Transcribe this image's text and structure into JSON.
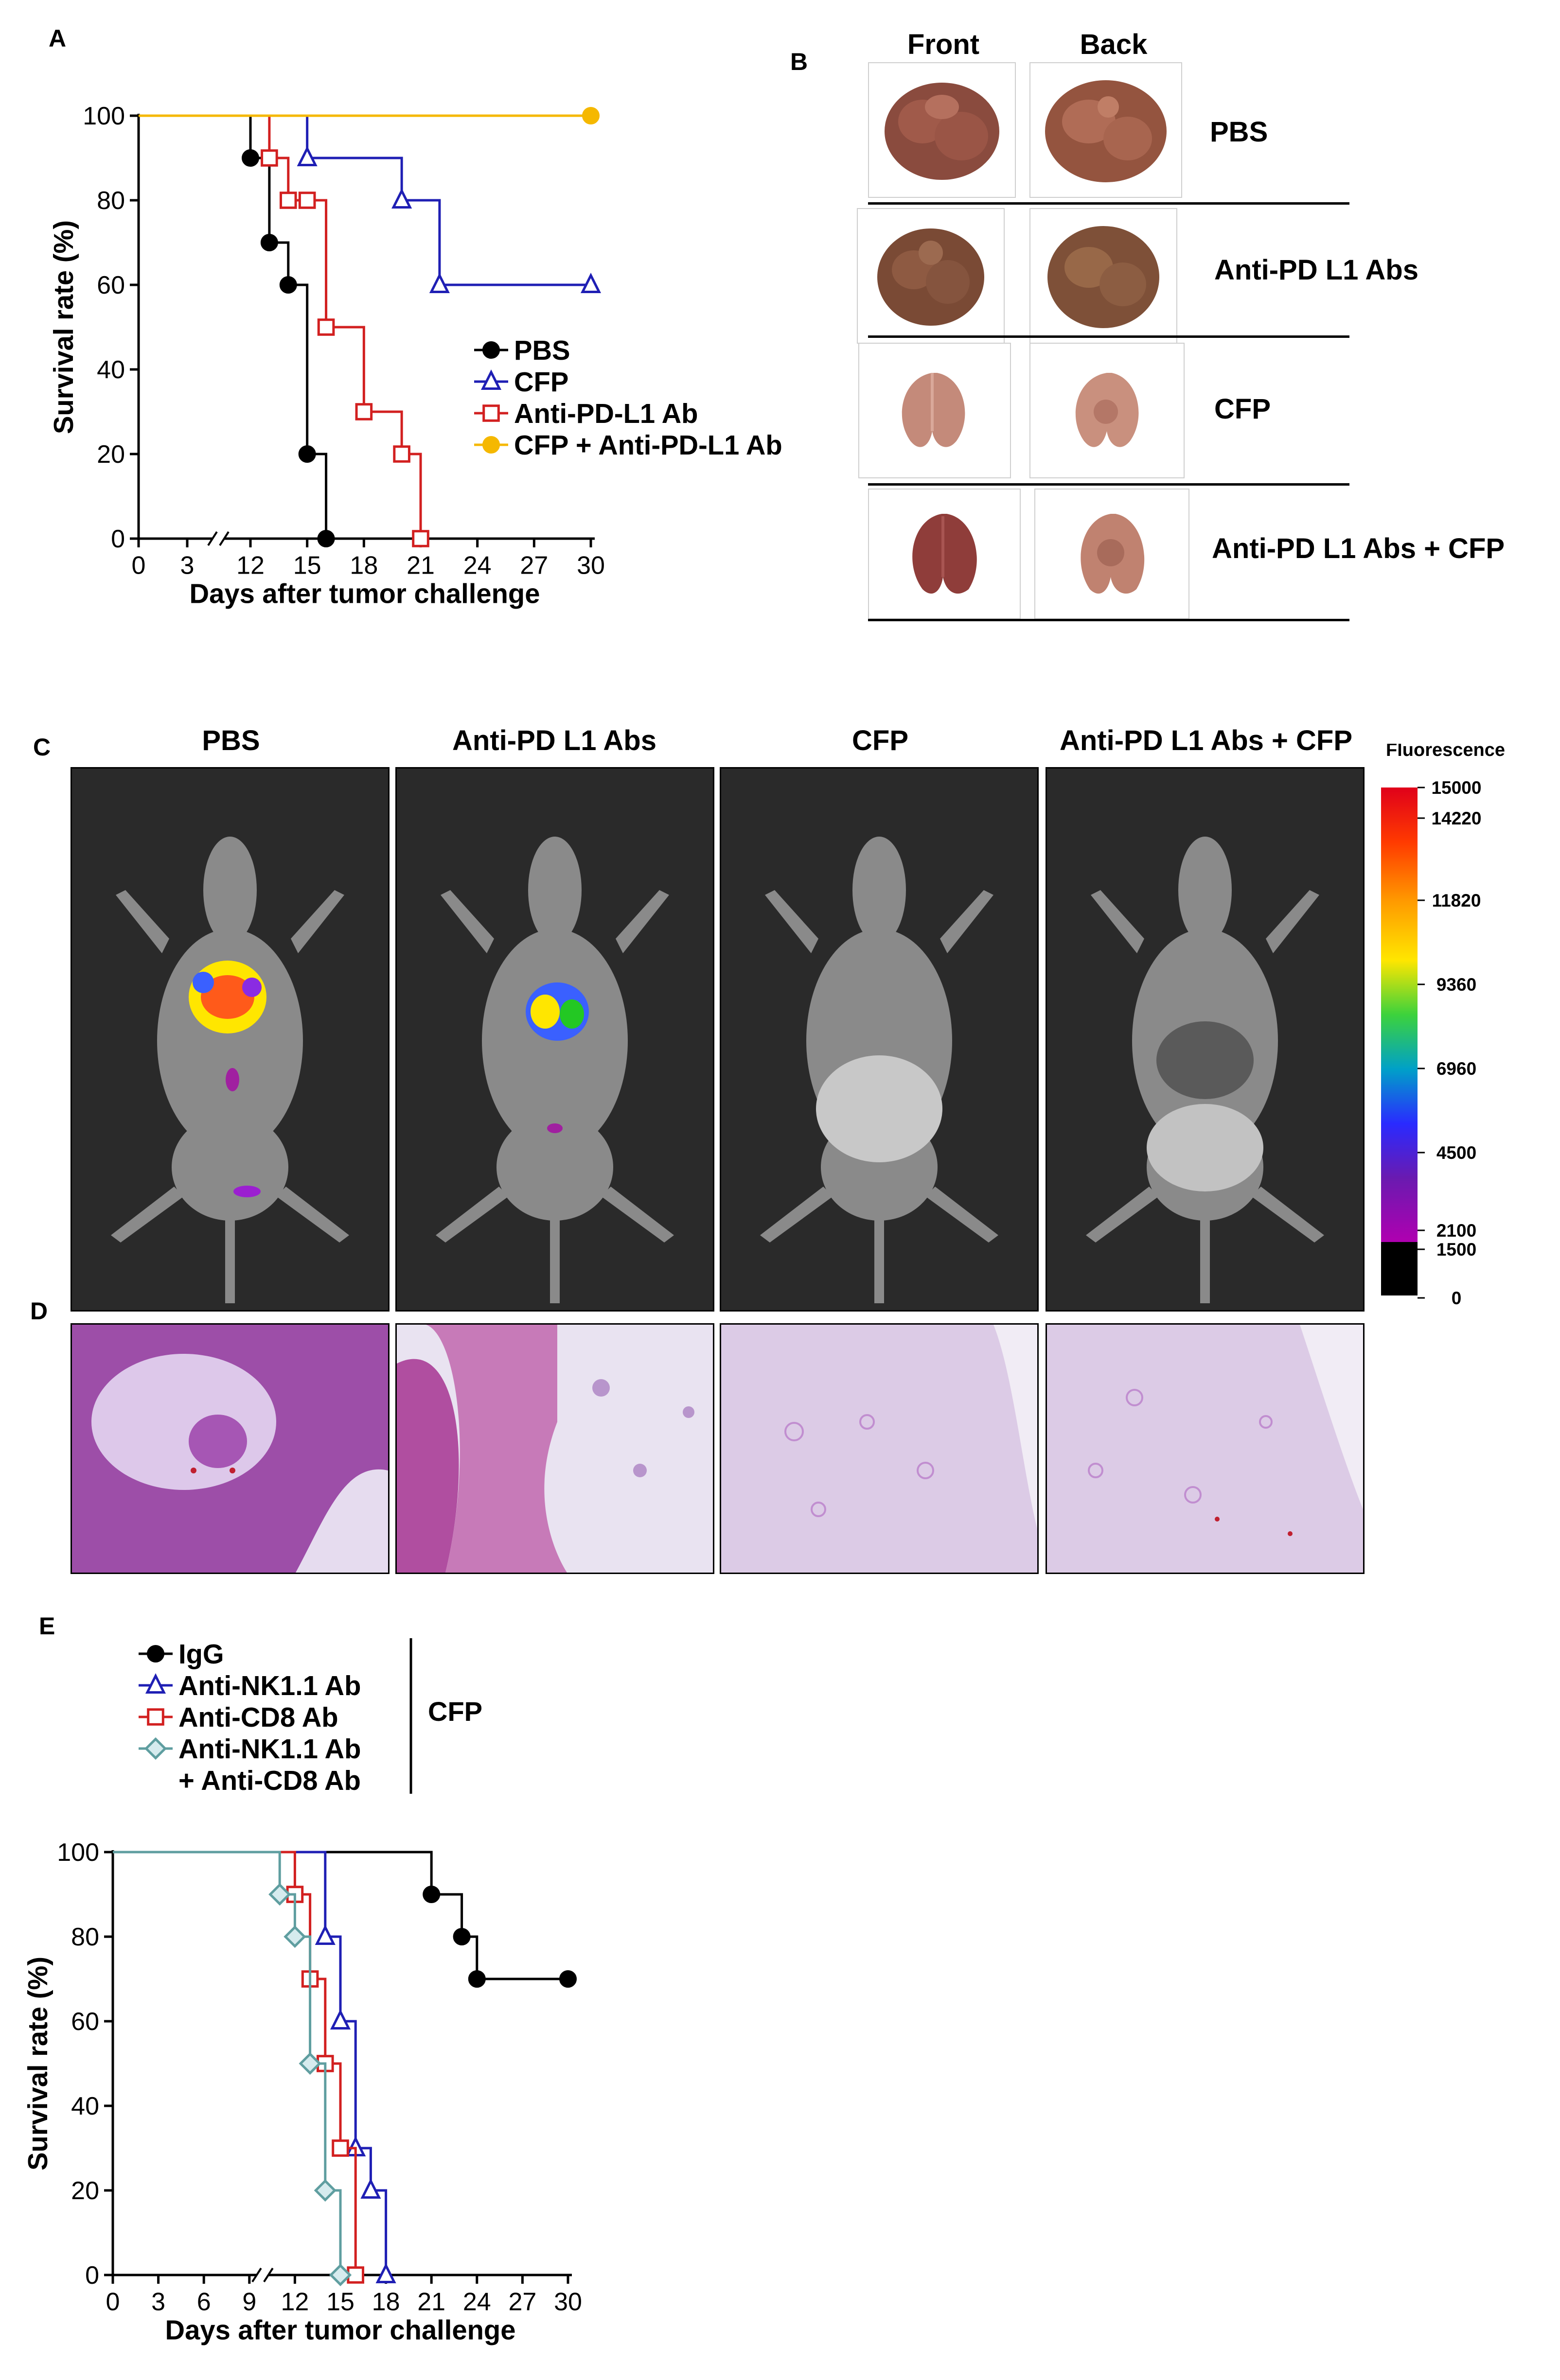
{
  "panels": {
    "a_label": "A",
    "b_label": "B",
    "c_label": "C",
    "d_label": "D",
    "e_label": "E"
  },
  "panel_b": {
    "col_front": "Front",
    "col_back": "Back",
    "rows": [
      "PBS",
      "Anti-PD L1 Abs",
      "CFP",
      "Anti-PD L1 Abs + CFP"
    ]
  },
  "panel_c": {
    "headers": [
      "PBS",
      "Anti-PD L1 Abs",
      "CFP",
      "Anti-PD L1 Abs + CFP"
    ],
    "colorbar_title": "Fluorescence",
    "colorbar_ticks": [
      "15000",
      "14220",
      "11820",
      "9360",
      "6960",
      "4500",
      "2100",
      "1500",
      "0"
    ]
  },
  "chart_data": [
    {
      "type": "line",
      "panel": "A",
      "step": true,
      "xlabel": "Days after tumor challenge",
      "ylabel": "Survival rate (%)",
      "xticks": [
        0,
        3,
        12,
        15,
        18,
        21,
        24,
        27,
        30
      ],
      "yticks": [
        0,
        20,
        40,
        60,
        80,
        100
      ],
      "xlim": [
        0,
        30
      ],
      "ylim": [
        0,
        100
      ],
      "axis_break": "between 3 and 12",
      "legend_position": "right",
      "series": [
        {
          "name": "PBS",
          "color": "#000000",
          "marker": "filled-circle",
          "x": [
            0,
            12,
            13,
            14,
            15,
            16
          ],
          "y": [
            100,
            90,
            70,
            60,
            20,
            0
          ]
        },
        {
          "name": "CFP",
          "color": "#1f1fb4",
          "marker": "open-triangle",
          "x": [
            0,
            15,
            20,
            22,
            30
          ],
          "y": [
            100,
            90,
            80,
            60,
            60
          ]
        },
        {
          "name": "Anti-PD-L1 Ab",
          "color": "#d22020",
          "marker": "open-square",
          "x": [
            0,
            13,
            14,
            15,
            16,
            18,
            20,
            21
          ],
          "y": [
            100,
            90,
            80,
            80,
            50,
            30,
            20,
            0
          ]
        },
        {
          "name": "CFP + Anti-PD-L1 Ab",
          "color": "#f5b800",
          "marker": "filled-circle",
          "x": [
            0,
            30
          ],
          "y": [
            100,
            100
          ]
        }
      ]
    },
    {
      "type": "line",
      "panel": "E",
      "step": true,
      "xlabel": "Days after tumor challenge",
      "ylabel": "Survival rate (%)",
      "xticks": [
        0,
        3,
        6,
        9,
        12,
        15,
        18,
        21,
        24,
        27,
        30
      ],
      "yticks": [
        0,
        20,
        40,
        60,
        80,
        100
      ],
      "xlim": [
        0,
        30
      ],
      "ylim": [
        0,
        100
      ],
      "axis_break": "near 10",
      "legend_position": "top",
      "legend_group_label": "CFP",
      "series": [
        {
          "name": "IgG",
          "color": "#000000",
          "marker": "filled-circle",
          "x": [
            0,
            21,
            23,
            24,
            30
          ],
          "y": [
            100,
            90,
            80,
            70,
            70
          ]
        },
        {
          "name": "Anti-NK1.1 Ab",
          "color": "#1f1fb4",
          "marker": "open-triangle",
          "x": [
            0,
            14,
            15,
            16,
            17,
            18
          ],
          "y": [
            100,
            80,
            60,
            30,
            20,
            0
          ]
        },
        {
          "name": "Anti-CD8 Ab",
          "color": "#d22020",
          "marker": "open-square",
          "x": [
            0,
            12,
            13,
            14,
            15,
            16
          ],
          "y": [
            100,
            90,
            70,
            50,
            30,
            0
          ]
        },
        {
          "name": "Anti-NK1.1 Ab\n+ Anti-CD8 Ab",
          "color": "#5f9ea0",
          "marker": "open-diamond",
          "x": [
            0,
            11,
            12,
            13,
            14,
            15
          ],
          "y": [
            100,
            90,
            80,
            50,
            20,
            0
          ]
        }
      ]
    }
  ]
}
